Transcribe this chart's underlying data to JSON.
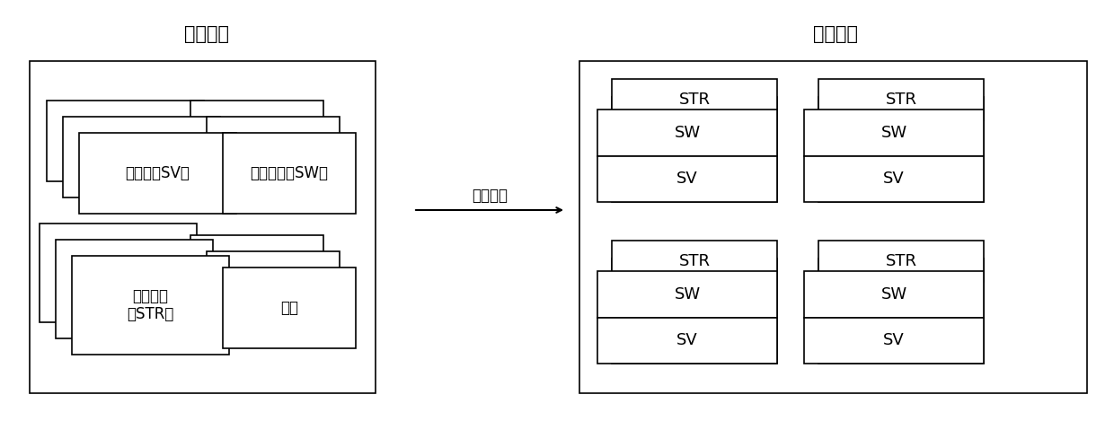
{
  "title_left": "设备互联",
  "title_right": "完成配置",
  "arrow_label": "连接配置",
  "bg_color": "#ffffff",
  "text_color": "#000000",
  "title_fontsize": 15,
  "label_fontsize": 12,
  "small_label_fontsize": 13,
  "lw": 1.2
}
